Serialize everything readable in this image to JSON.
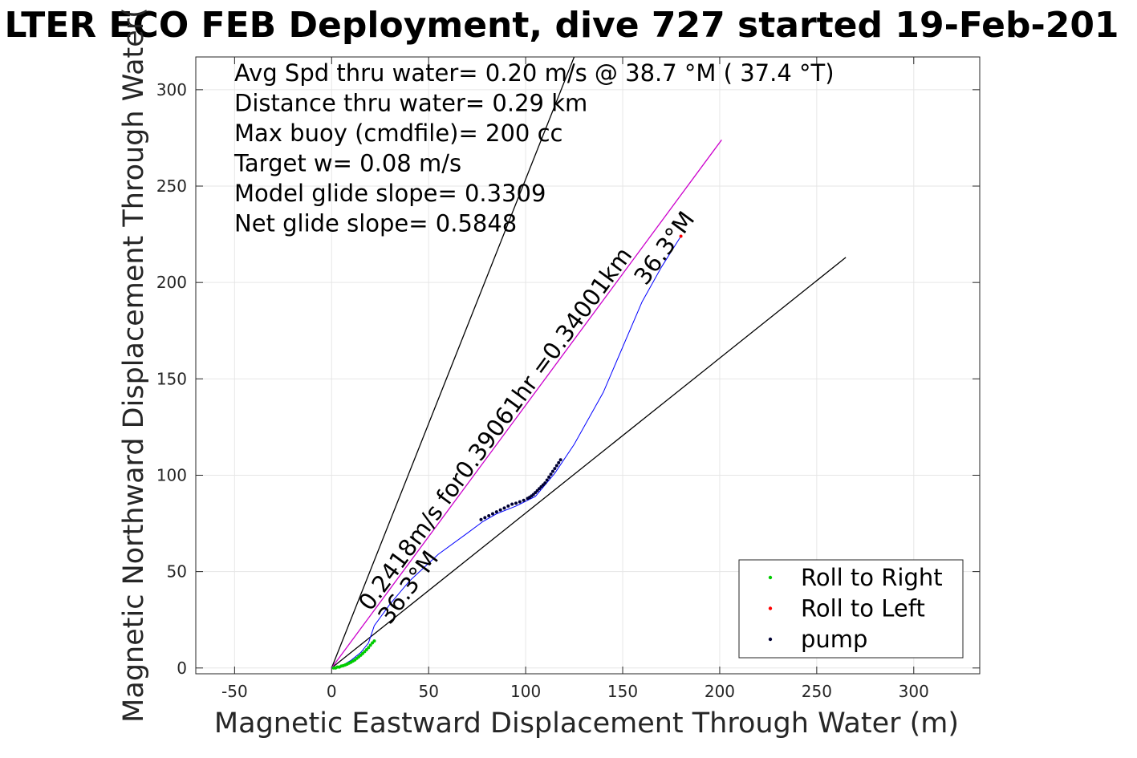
{
  "chart_data": {
    "type": "line",
    "title": "LTER ECO FEB Deployment, dive 727 started 19-Feb-201",
    "xlabel": "Magnetic Eastward Displacement Through Water (m)",
    "ylabel": "Magnetic Northward Displacement Through Water(",
    "xlim": [
      -70,
      334
    ],
    "ylim": [
      -3,
      317
    ],
    "xticks": [
      -50,
      0,
      50,
      100,
      150,
      200,
      250,
      300
    ],
    "yticks": [
      0,
      50,
      100,
      150,
      200,
      250,
      300
    ],
    "grid": true,
    "stats": [
      "Avg Spd thru water=  0.20 m/s @  38.7 °M ( 37.4 °T)",
      "Distance thru water=  0.29 km",
      "Max buoy (cmdfile)= 200 cc",
      "Target w= 0.08 m/s",
      "Model glide slope= 0.3309",
      "Net glide slope= 0.5848"
    ],
    "annotations": [
      {
        "text": "0.2418m/s for0.39061hr =0.34001km",
        "x": 20,
        "y": 29,
        "angle": 53.7
      },
      {
        "text": "36.3°M",
        "x": 30,
        "y": 22,
        "angle": 53.7
      },
      {
        "text": "36.3°M",
        "x": 162,
        "y": 198,
        "angle": 53.7
      }
    ],
    "reference_lines": [
      {
        "name": "wedge-left",
        "color": "#000000",
        "x": [
          0,
          125
        ],
        "y": [
          0,
          317
        ]
      },
      {
        "name": "wedge-right",
        "color": "#000000",
        "x": [
          0,
          265
        ],
        "y": [
          0,
          213
        ]
      },
      {
        "name": "heading",
        "color": "#cc00cc",
        "x": [
          0,
          201
        ],
        "y": [
          0,
          274
        ]
      }
    ],
    "track": {
      "color": "#0000ff",
      "x": [
        0,
        5,
        10,
        15,
        19,
        22,
        30,
        40,
        55,
        70,
        78,
        85,
        95,
        105,
        115,
        125,
        140,
        160,
        170,
        180
      ],
      "y": [
        0,
        1,
        4,
        8,
        13,
        22,
        33,
        45,
        59,
        70,
        76,
        80,
        84,
        89,
        101,
        116,
        143,
        190,
        208,
        224
      ]
    },
    "series": [
      {
        "name": "Roll to Right",
        "color": "#00cc00",
        "x": [
          1,
          2,
          3,
          4,
          5,
          6,
          7,
          8,
          9,
          10,
          11,
          12,
          13,
          14,
          15,
          16,
          17,
          18,
          19,
          20,
          21,
          22
        ],
        "y": [
          0,
          0,
          0.5,
          0.5,
          1,
          1.2,
          1.6,
          2,
          2.5,
          3,
          3.6,
          4.2,
          5,
          5.8,
          6.6,
          7.5,
          8.5,
          9.5,
          10.6,
          11.8,
          13,
          14
        ]
      },
      {
        "name": "Roll to Left",
        "color": "#ff0000",
        "x": [
          180
        ],
        "y": [
          224
        ]
      },
      {
        "name": "pump",
        "color": "#000033",
        "x": [
          77,
          79,
          81,
          83,
          85,
          87,
          89,
          91,
          93,
          95,
          97,
          99,
          101,
          102,
          103,
          104,
          105,
          106,
          107,
          108,
          109,
          110,
          111,
          112,
          113,
          114,
          115,
          116,
          117,
          118
        ],
        "y": [
          77,
          78,
          79,
          80,
          81,
          82,
          83,
          84,
          85,
          85.5,
          86.2,
          87,
          88,
          88.5,
          89.2,
          90,
          91,
          92,
          93,
          94,
          95,
          96,
          97.5,
          99,
          100.5,
          102,
          103.5,
          105,
          106.5,
          108
        ]
      }
    ]
  }
}
